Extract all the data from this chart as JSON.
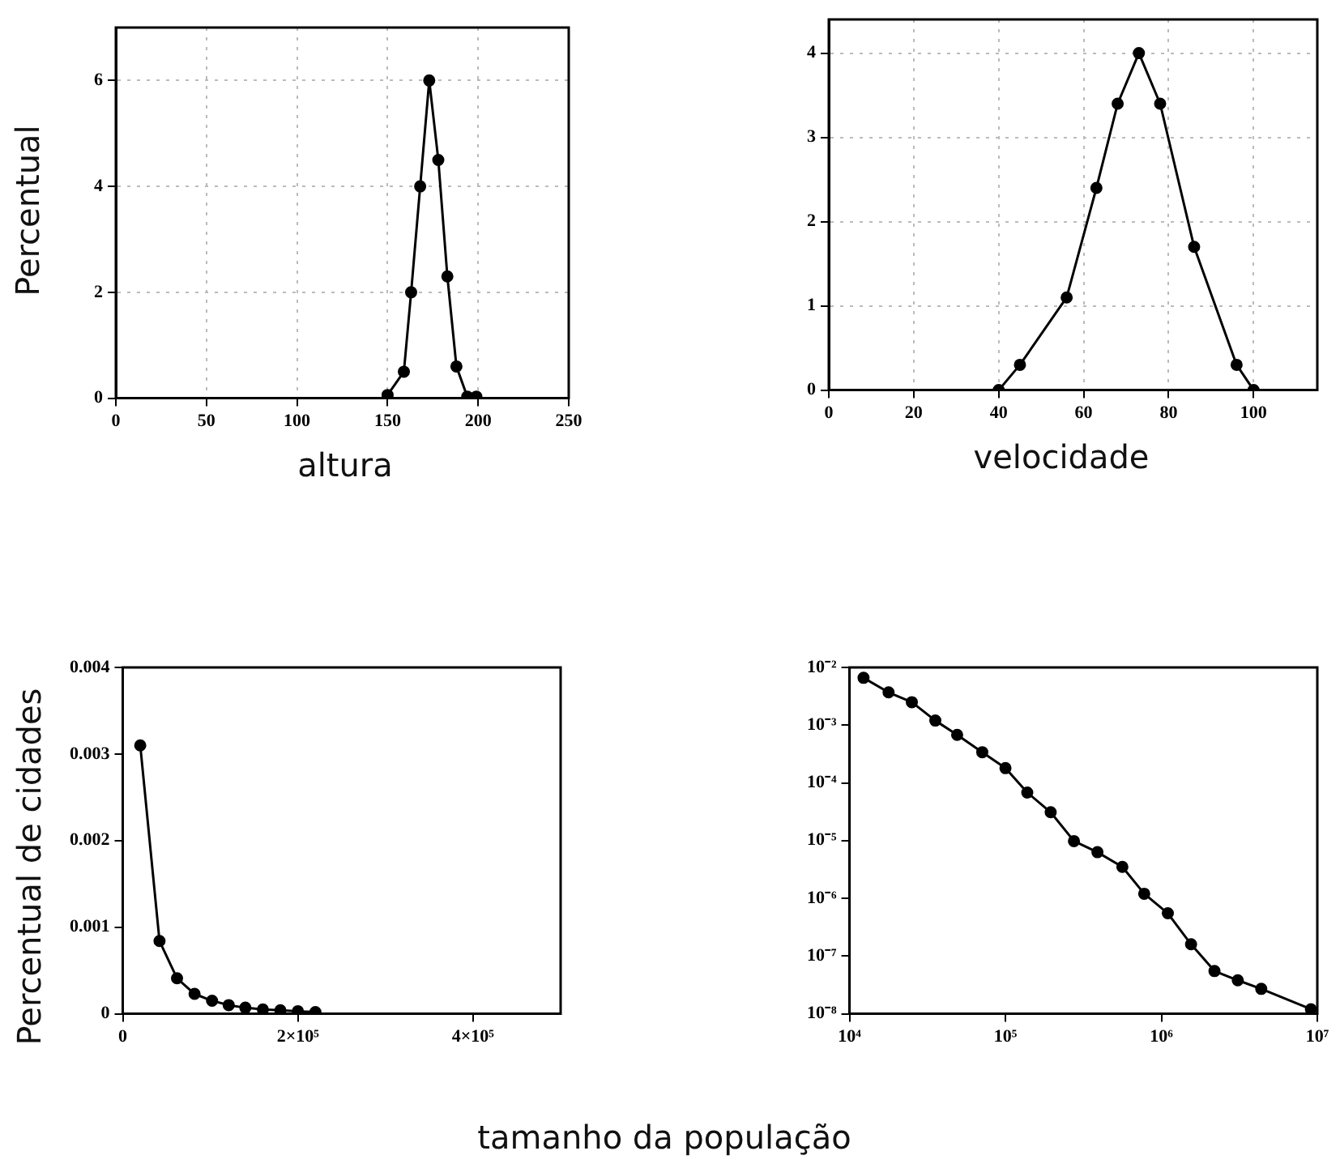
{
  "chart_data": [
    {
      "type": "line",
      "xlabel": "altura",
      "ylabel": "Percentual",
      "x": [
        150,
        159,
        163,
        168,
        173,
        178,
        183,
        188,
        194,
        199
      ],
      "series": [
        {
          "color": "#000000",
          "values": [
            0.06,
            0.5,
            2.0,
            4.0,
            6.0,
            4.5,
            2.3,
            0.6,
            0.03,
            0.03
          ]
        }
      ],
      "xlim": [
        0,
        250
      ],
      "ylim": [
        0,
        7
      ],
      "xticks": [
        0,
        50,
        100,
        150,
        200,
        250
      ],
      "yticks": [
        0,
        2,
        4,
        6
      ],
      "grid": true,
      "marker": "circle"
    },
    {
      "type": "line",
      "xlabel": "velocidade",
      "x": [
        40,
        45,
        56,
        63,
        68,
        73,
        78,
        86,
        96,
        100
      ],
      "series": [
        {
          "color": "#000000",
          "values": [
            0,
            0.3,
            1.1,
            2.4,
            3.4,
            4.0,
            3.4,
            1.7,
            0.3,
            0
          ]
        }
      ],
      "xlim": [
        0,
        115
      ],
      "ylim": [
        0,
        4.4
      ],
      "xticks": [
        0,
        20,
        40,
        60,
        80,
        100
      ],
      "yticks": [
        0,
        1,
        2,
        3,
        4
      ],
      "grid": true,
      "marker": "circle"
    },
    {
      "type": "line",
      "xlabel": "tamanho da população",
      "ylabel": "Percentual de cidades",
      "x": [
        20000,
        42000,
        62000,
        82000,
        102000,
        121000,
        140000,
        160000,
        180000,
        200000,
        220000
      ],
      "series": [
        {
          "color": "#000000",
          "values": [
            0.0031,
            0.00084,
            0.00041,
            0.00023,
            0.00015,
            0.0001,
            7e-05,
            5e-05,
            4e-05,
            3e-05,
            2e-05
          ]
        }
      ],
      "xlim": [
        0,
        500000
      ],
      "ylim": [
        0,
        0.004
      ],
      "xticks": [
        0,
        {
          "value": 200000,
          "label": "2×10⁵"
        },
        {
          "value": 400000,
          "label": "4×10⁵"
        }
      ],
      "yticks": [
        0,
        0.001,
        0.002,
        0.003,
        0.004
      ],
      "marker": "circle"
    },
    {
      "type": "line",
      "log": "xy",
      "x": [
        12300,
        17800,
        25100,
        35500,
        49000,
        71000,
        100000,
        138000,
        195000,
        275000,
        389000,
        562000,
        776000,
        1100000,
        1550000,
        2190000,
        3090000,
        4370000,
        9100000
      ],
      "series": [
        {
          "color": "#000000",
          "values": [
            0.0066,
            0.0037,
            0.0025,
            0.0012,
            0.00068,
            0.00034,
            0.00018,
            6.8e-05,
            3.1e-05,
            9.8e-06,
            6.3e-06,
            3.5e-06,
            1.2e-06,
            5.5e-07,
            1.6e-07,
            5.5e-08,
            3.8e-08,
            2.7e-08,
            1.2e-08
          ]
        }
      ],
      "xlim": [
        10000,
        10000000
      ],
      "ylim": [
        1e-08,
        0.01
      ],
      "xticks": [
        {
          "value": 10000,
          "label": "10⁴"
        },
        {
          "value": 100000,
          "label": "10⁵"
        },
        {
          "value": 1000000,
          "label": "10⁶"
        },
        {
          "value": 10000000,
          "label": "10⁷"
        }
      ],
      "yticks": [
        {
          "value": 1e-08,
          "label": "10⁻⁸"
        },
        {
          "value": 1e-07,
          "label": "10⁻⁷"
        },
        {
          "value": 1e-06,
          "label": "10⁻⁶"
        },
        {
          "value": 1e-05,
          "label": "10⁻⁵"
        },
        {
          "value": 0.0001,
          "label": "10⁻⁴"
        },
        {
          "value": 0.001,
          "label": "10⁻³"
        },
        {
          "value": 0.01,
          "label": "10⁻²"
        }
      ],
      "marker": "circle"
    }
  ]
}
